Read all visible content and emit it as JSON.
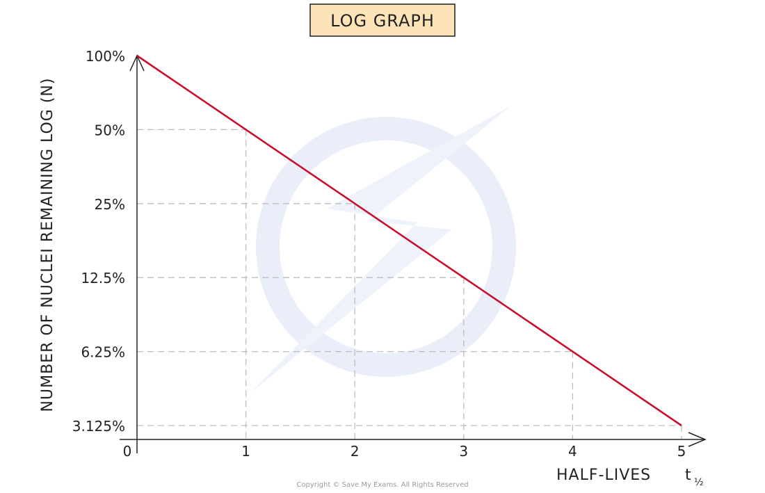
{
  "title": "LOG GRAPH",
  "footer": "Copyright © Save My Exams. All Rights Reserved",
  "chart_data": {
    "type": "line",
    "title": "LOG GRAPH",
    "xlabel": "HALF-LIVES",
    "xlabel_symbol": "t",
    "xlabel_subscript": "½",
    "ylabel": "NUMBER OF NUCLEI REMAINING LOG (N)",
    "y_scale": "log",
    "x_ticks": [
      "0",
      "1",
      "2",
      "3",
      "4",
      "5"
    ],
    "y_ticks": [
      "100%",
      "50%",
      "25%",
      "12.5%",
      "6.25%",
      "3.125%"
    ],
    "xlim": [
      0,
      5
    ],
    "ylim": [
      3.125,
      100
    ],
    "grid": "dashed at tick values",
    "series": [
      {
        "color": "#c8102e",
        "x": [
          0,
          1,
          2,
          3,
          4,
          5
        ],
        "y": [
          100,
          50,
          25,
          12.5,
          6.25,
          3.125
        ]
      }
    ]
  }
}
